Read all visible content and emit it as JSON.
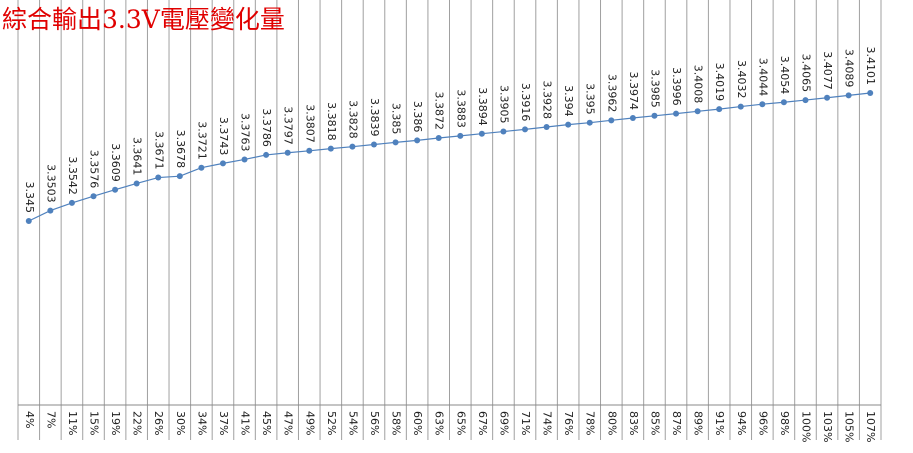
{
  "chart_data": {
    "type": "line",
    "title": "綜合輸出3.3V電壓變化量",
    "categories": [
      "4%",
      "7%",
      "11%",
      "15%",
      "19%",
      "22%",
      "26%",
      "30%",
      "34%",
      "37%",
      "41%",
      "45%",
      "47%",
      "49%",
      "52%",
      "54%",
      "56%",
      "58%",
      "60%",
      "63%",
      "65%",
      "67%",
      "69%",
      "71%",
      "74%",
      "76%",
      "78%",
      "80%",
      "83%",
      "85%",
      "87%",
      "89%",
      "91%",
      "94%",
      "96%",
      "98%",
      "100%",
      "103%",
      "105%",
      "107%"
    ],
    "values": [
      3.345,
      3.3503,
      3.3542,
      3.3576,
      3.3609,
      3.3641,
      3.3671,
      3.3678,
      3.3721,
      3.3743,
      3.3763,
      3.3786,
      3.3797,
      3.3807,
      3.3818,
      3.3828,
      3.3839,
      3.385,
      3.386,
      3.3872,
      3.3883,
      3.3894,
      3.3905,
      3.3916,
      3.3928,
      3.394,
      3.395,
      3.3962,
      3.3974,
      3.3985,
      3.3996,
      3.4008,
      3.4019,
      3.4032,
      3.4044,
      3.4054,
      3.4065,
      3.4077,
      3.4089,
      3.4101
    ],
    "color": "#4f81bd",
    "grid": true
  }
}
